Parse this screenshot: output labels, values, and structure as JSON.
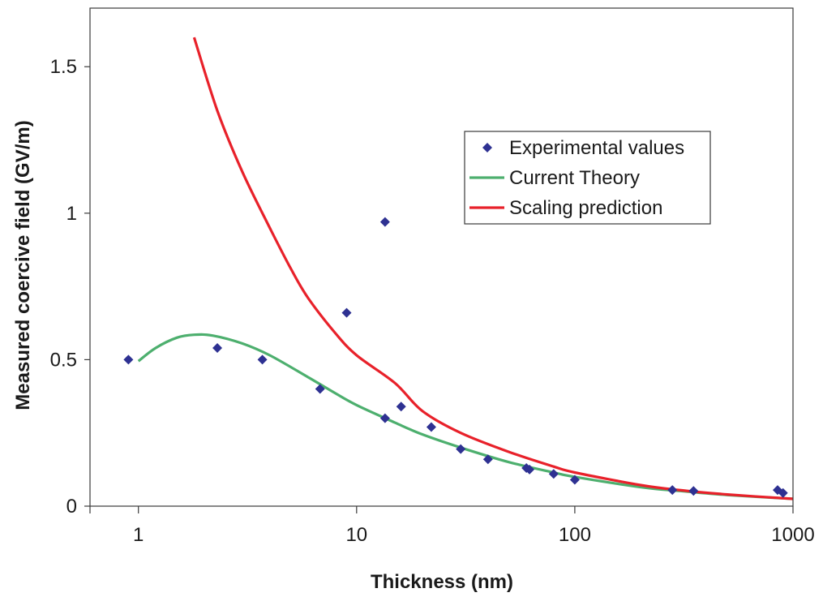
{
  "chart_data": {
    "type": "scatter",
    "title": "",
    "xlabel": "Thickness (nm)",
    "ylabel": "Measured coercive field (GV/m)",
    "xscale": "log",
    "xlim": [
      0.6,
      1000
    ],
    "ylim": [
      0,
      1.7
    ],
    "x_ticks": [
      1,
      10,
      100,
      1000
    ],
    "x_tick_labels": [
      "1",
      "10",
      "100",
      "1000"
    ],
    "y_ticks": [
      0,
      0.5,
      1,
      1.5
    ],
    "y_tick_labels": [
      "0",
      "0.5",
      "1",
      "1.5"
    ],
    "grid": false,
    "legend_position": "right",
    "series": [
      {
        "name": "Experimental values",
        "kind": "scatter",
        "marker": "diamond",
        "color": "#2e3192",
        "points": [
          {
            "x": 0.9,
            "y": 0.5
          },
          {
            "x": 2.3,
            "y": 0.54
          },
          {
            "x": 3.7,
            "y": 0.5
          },
          {
            "x": 6.8,
            "y": 0.4
          },
          {
            "x": 9.0,
            "y": 0.66
          },
          {
            "x": 13.5,
            "y": 0.97
          },
          {
            "x": 13.5,
            "y": 0.3
          },
          {
            "x": 16.0,
            "y": 0.34
          },
          {
            "x": 22.0,
            "y": 0.27
          },
          {
            "x": 30.0,
            "y": 0.195
          },
          {
            "x": 40.0,
            "y": 0.16
          },
          {
            "x": 60.0,
            "y": 0.13
          },
          {
            "x": 62.0,
            "y": 0.125
          },
          {
            "x": 80.0,
            "y": 0.11
          },
          {
            "x": 100.0,
            "y": 0.09
          },
          {
            "x": 280.0,
            "y": 0.055
          },
          {
            "x": 350.0,
            "y": 0.052
          },
          {
            "x": 850.0,
            "y": 0.055
          },
          {
            "x": 900.0,
            "y": 0.045
          }
        ]
      },
      {
        "name": "Current Theory",
        "kind": "line",
        "color": "#4daf6e",
        "points": [
          {
            "x": 1.0,
            "y": 0.495
          },
          {
            "x": 1.2,
            "y": 0.54
          },
          {
            "x": 1.5,
            "y": 0.575
          },
          {
            "x": 1.8,
            "y": 0.585
          },
          {
            "x": 2.2,
            "y": 0.582
          },
          {
            "x": 3.0,
            "y": 0.555
          },
          {
            "x": 4.0,
            "y": 0.515
          },
          {
            "x": 6.0,
            "y": 0.44
          },
          {
            "x": 8.0,
            "y": 0.385
          },
          {
            "x": 10.0,
            "y": 0.345
          },
          {
            "x": 15.0,
            "y": 0.285
          },
          {
            "x": 20.0,
            "y": 0.245
          },
          {
            "x": 30.0,
            "y": 0.2
          },
          {
            "x": 50.0,
            "y": 0.15
          },
          {
            "x": 80.0,
            "y": 0.115
          },
          {
            "x": 100.0,
            "y": 0.1
          },
          {
            "x": 200.0,
            "y": 0.065
          },
          {
            "x": 300.0,
            "y": 0.052
          },
          {
            "x": 500.0,
            "y": 0.038
          },
          {
            "x": 1000.0,
            "y": 0.025
          }
        ]
      },
      {
        "name": "Scaling prediction",
        "kind": "line",
        "color": "#e8212a",
        "points": [
          {
            "x": 1.8,
            "y": 1.6
          },
          {
            "x": 2.3,
            "y": 1.35
          },
          {
            "x": 3.0,
            "y": 1.14
          },
          {
            "x": 4.0,
            "y": 0.95
          },
          {
            "x": 5.0,
            "y": 0.81
          },
          {
            "x": 6.0,
            "y": 0.71
          },
          {
            "x": 8.0,
            "y": 0.59
          },
          {
            "x": 10.0,
            "y": 0.515
          },
          {
            "x": 15.0,
            "y": 0.42
          },
          {
            "x": 20.0,
            "y": 0.325
          },
          {
            "x": 30.0,
            "y": 0.25
          },
          {
            "x": 50.0,
            "y": 0.185
          },
          {
            "x": 80.0,
            "y": 0.135
          },
          {
            "x": 100.0,
            "y": 0.115
          },
          {
            "x": 200.0,
            "y": 0.072
          },
          {
            "x": 300.0,
            "y": 0.055
          },
          {
            "x": 500.0,
            "y": 0.04
          },
          {
            "x": 1000.0,
            "y": 0.025
          }
        ]
      }
    ]
  }
}
